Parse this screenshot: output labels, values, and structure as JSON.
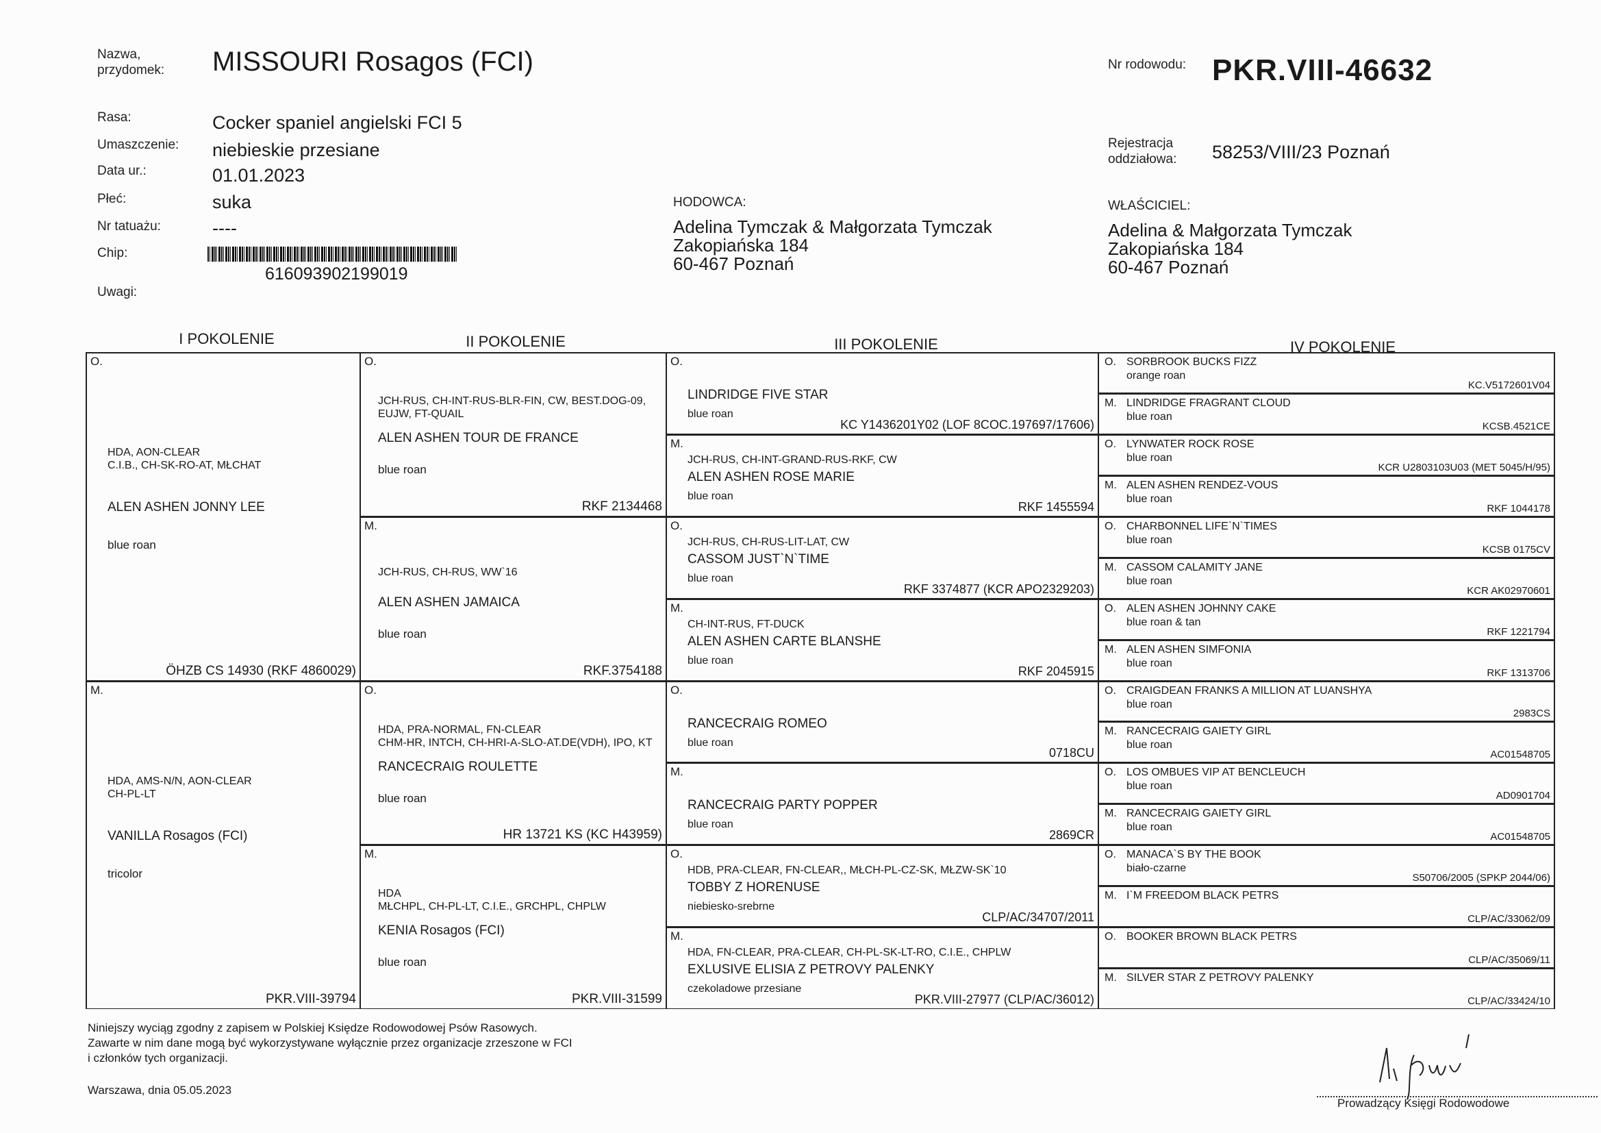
{
  "header": {
    "name_label": "Nazwa,\nprzydomek:",
    "name_value": "MISSOURI Rosagos (FCI)",
    "pedigree_no_label": "Nr rodowodu:",
    "pedigree_no_value": "PKR.VIII-46632",
    "fields": [
      {
        "label": "Rasa:",
        "value": "Cocker spaniel angielski FCI 5"
      },
      {
        "label": "Umaszczenie:",
        "value": "niebieskie przesiane"
      },
      {
        "label": "Data ur.:",
        "value": "01.01.2023"
      },
      {
        "label": "Płeć:",
        "value": "suka"
      },
      {
        "label": "Nr tatuażu:",
        "value": "----"
      },
      {
        "label": "Chip:",
        "value": "616093902199019"
      },
      {
        "label": "Uwagi:",
        "value": ""
      }
    ],
    "registration_label": "Rejestracja\noddziałowa:",
    "registration_value": "58253/VIII/23 Poznań",
    "breeder": {
      "label": "HODOWCA:",
      "lines": [
        "Adelina Tymczak & Małgorzata Tymczak",
        "Zakopiańska 184",
        "60-467 Poznań"
      ]
    },
    "owner": {
      "label": "WŁAŚCICIEL:",
      "lines": [
        "Adelina & Małgorzata Tymczak",
        "Zakopiańska 184",
        "60-467 Poznań"
      ]
    }
  },
  "generations": [
    "I POKOLENIE",
    "II POKOLENIE",
    "III POKOLENIE",
    "IV POKOLENIE"
  ],
  "pedigree": {
    "gen1": [
      {
        "parent": "O.",
        "titles": [
          "HDA, AON-CLEAR",
          "C.I.B., CH-SK-RO-AT, MŁCHAT"
        ],
        "name": "ALEN ASHEN JONNY LEE",
        "color": "blue roan",
        "reg": "ÖHZB CS 14930 (RKF 4860029)"
      },
      {
        "parent": "M.",
        "titles": [
          "HDA, AMS-N/N, AON-CLEAR",
          "CH-PL-LT"
        ],
        "name": "VANILLA Rosagos (FCI)",
        "color": "tricolor",
        "reg": "PKR.VIII-39794"
      }
    ],
    "gen2": [
      {
        "parent": "O.",
        "titles": [
          "JCH-RUS, CH-INT-RUS-BLR-FIN, CW, BEST.DOG-09,",
          "EUJW, FT-QUAIL"
        ],
        "name": "ALEN ASHEN TOUR DE FRANCE",
        "color": "blue roan",
        "reg": "RKF 2134468"
      },
      {
        "parent": "M.",
        "titles": [
          "JCH-RUS, CH-RUS, WW`16"
        ],
        "name": "ALEN ASHEN JAMAICA",
        "color": "blue roan",
        "reg": "RKF.3754188"
      },
      {
        "parent": "O.",
        "titles": [
          "HDA, PRA-NORMAL, FN-CLEAR",
          "CHM-HR, INTCH, CH-HRI-A-SLO-AT.DE(VDH), IPO, KT"
        ],
        "name": "RANCECRAIG ROULETTE",
        "color": "blue roan",
        "reg": "HR 13721 KS (KC H43959)"
      },
      {
        "parent": "M.",
        "titles": [
          "HDA",
          "MŁCHPL, CH-PL-LT, C.I.E., GRCHPL, CHPLW"
        ],
        "name": "KENIA Rosagos (FCI)",
        "color": "blue roan",
        "reg": "PKR.VIII-31599"
      }
    ],
    "gen3": [
      {
        "parent": "O.",
        "titles": [],
        "name": "LINDRIDGE FIVE STAR",
        "color": "blue roan",
        "reg": "KC Y1436201Y02 (LOF 8COC.197697/17606)"
      },
      {
        "parent": "M.",
        "titles": [
          "JCH-RUS, CH-INT-GRAND-RUS-RKF, CW"
        ],
        "name": "ALEN ASHEN ROSE MARIE",
        "color": "blue roan",
        "reg": "RKF 1455594"
      },
      {
        "parent": "O.",
        "titles": [
          "JCH-RUS, CH-RUS-LIT-LAT, CW"
        ],
        "name": "CASSOM JUST`N`TIME",
        "color": "blue roan",
        "reg": "RKF 3374877 (KCR APO2329203)"
      },
      {
        "parent": "M.",
        "titles": [
          "CH-INT-RUS, FT-DUCK"
        ],
        "name": "ALEN ASHEN CARTE BLANSHE",
        "color": "blue roan",
        "reg": "RKF 2045915"
      },
      {
        "parent": "O.",
        "titles": [],
        "name": "RANCECRAIG ROMEO",
        "color": "blue roan",
        "reg": "0718CU"
      },
      {
        "parent": "M.",
        "titles": [],
        "name": "RANCECRAIG PARTY POPPER",
        "color": "blue roan",
        "reg": "2869CR"
      },
      {
        "parent": "O.",
        "titles": [
          "HDB, PRA-CLEAR, FN-CLEAR,, MŁCH-PL-CZ-SK, MŁZW-SK`10"
        ],
        "name": "TOBBY Z HORENUSE",
        "color": "niebiesko-srebrne",
        "reg": "CLP/AC/34707/2011"
      },
      {
        "parent": "M.",
        "titles": [
          "HDA, FN-CLEAR, PRA-CLEAR, CH-PL-SK-LT-RO, C.I.E., CHPLW"
        ],
        "name": "EXLUSIVE ELISIA Z PETROVY PALENKY",
        "color": "czekoladowe przesiane",
        "reg": "PKR.VIII-27977 (CLP/AC/36012)"
      }
    ],
    "gen4": [
      {
        "parent": "O.",
        "name": "SORBROOK BUCKS FIZZ",
        "color": "orange roan",
        "reg": "KC.V5172601V04"
      },
      {
        "parent": "M.",
        "name": "LINDRIDGE FRAGRANT CLOUD",
        "color": "blue roan",
        "reg": "KCSB.4521CE"
      },
      {
        "parent": "O.",
        "name": "LYNWATER ROCK ROSE",
        "color": "blue roan",
        "reg": "KCR U2803103U03 (MET 5045/H/95)"
      },
      {
        "parent": "M.",
        "name": "ALEN ASHEN RENDEZ-VOUS",
        "color": "blue roan",
        "reg": "RKF 1044178"
      },
      {
        "parent": "O.",
        "name": "CHARBONNEL LIFE`N`TIMES",
        "color": "blue roan",
        "reg": "KCSB 0175CV"
      },
      {
        "parent": "M.",
        "name": "CASSOM CALAMITY JANE",
        "color": "blue roan",
        "reg": "KCR AK02970601"
      },
      {
        "parent": "O.",
        "name": "ALEN ASHEN JOHNNY CAKE",
        "color": "blue roan & tan",
        "reg": "RKF 1221794"
      },
      {
        "parent": "M.",
        "name": "ALEN ASHEN SIMFONIA",
        "color": "blue roan",
        "reg": "RKF 1313706"
      },
      {
        "parent": "O.",
        "name": "CRAIGDEAN FRANKS A MILLION AT LUANSHYA",
        "color": "blue roan",
        "reg": "2983CS"
      },
      {
        "parent": "M.",
        "name": "RANCECRAIG GAIETY GIRL",
        "color": "blue roan",
        "reg": "AC01548705"
      },
      {
        "parent": "O.",
        "name": "LOS OMBUES VIP AT BENCLEUCH",
        "color": "blue roan",
        "reg": "AD0901704"
      },
      {
        "parent": "M.",
        "name": "RANCECRAIG GAIETY GIRL",
        "color": "blue roan",
        "reg": "AC01548705"
      },
      {
        "parent": "O.",
        "name": "MANACA`S BY THE BOOK",
        "color": "biało-czarne",
        "reg": "S50706/2005 (SPKP 2044/06)"
      },
      {
        "parent": "M.",
        "name": "I`M FREEDOM BLACK PETRS",
        "color": "",
        "reg": "CLP/AC/33062/09"
      },
      {
        "parent": "O.",
        "name": "BOOKER BROWN BLACK PETRS",
        "color": "",
        "reg": "CLP/AC/35069/11"
      },
      {
        "parent": "M.",
        "name": "SILVER STAR Z PETROVY PALENKY",
        "color": "",
        "reg": "CLP/AC/33424/10"
      }
    ]
  },
  "footer": {
    "notice": [
      "Niniejszy wyciąg zgodny z zapisem w Polskiej Księdze Rodowodowej Psów Rasowych.",
      "Zawarte w nim dane mogą być wykorzystywane wyłącznie przez organizacje zrzeszone w FCI",
      "i członków tych organizacji."
    ],
    "place_date": "Warszawa, dnia  05.05.2023",
    "signature_caption": "Prowadzący Księgi Rodowodowe",
    "signature_text": "M. Prapis"
  }
}
